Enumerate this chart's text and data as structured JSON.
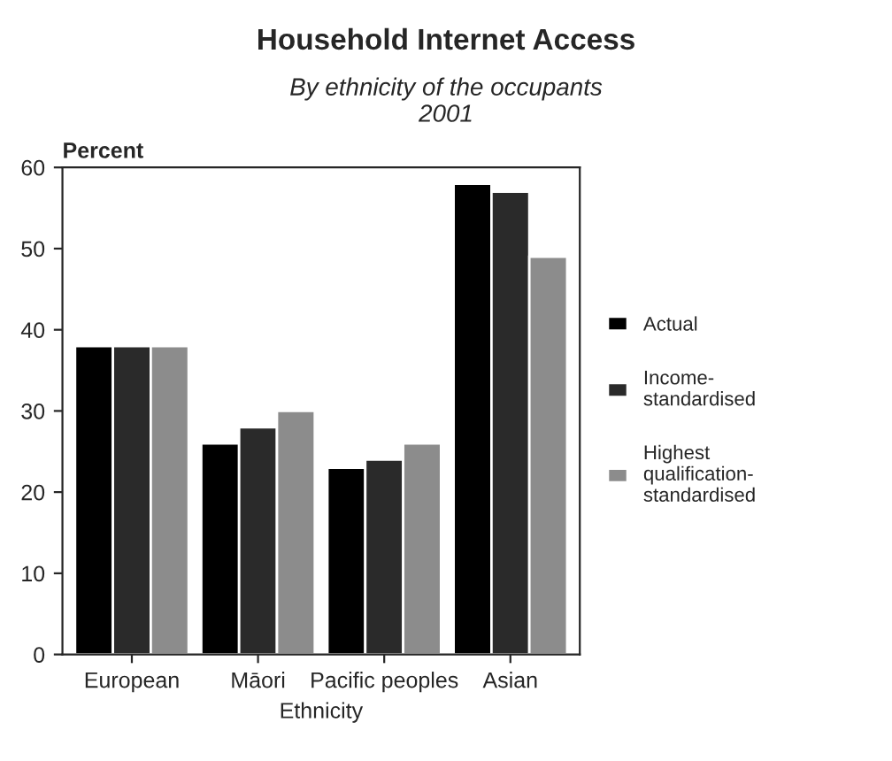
{
  "chart_data": {
    "type": "bar",
    "title": "Household Internet Access",
    "subtitle": "By ethnicity of the occupants\n2001",
    "xlabel": "Ethnicity",
    "ylabel": "Percent",
    "categories": [
      "European",
      "Māori",
      "Pacific peoples",
      "Asian"
    ],
    "series": [
      {
        "name": "Actual",
        "color": "#000000",
        "values": [
          38,
          26,
          23,
          58
        ]
      },
      {
        "name": "Income-\nstandardised",
        "color": "#2a2a2a",
        "values": [
          38,
          28,
          24,
          57
        ]
      },
      {
        "name": "Highest\nqualification-\nstandardised",
        "color": "#8c8c8c",
        "values": [
          38,
          30,
          26,
          49
        ]
      }
    ],
    "ylim": [
      0,
      60
    ],
    "yticks": [
      0,
      10,
      20,
      30,
      40,
      50,
      60
    ],
    "grid": false,
    "legend": "right"
  }
}
